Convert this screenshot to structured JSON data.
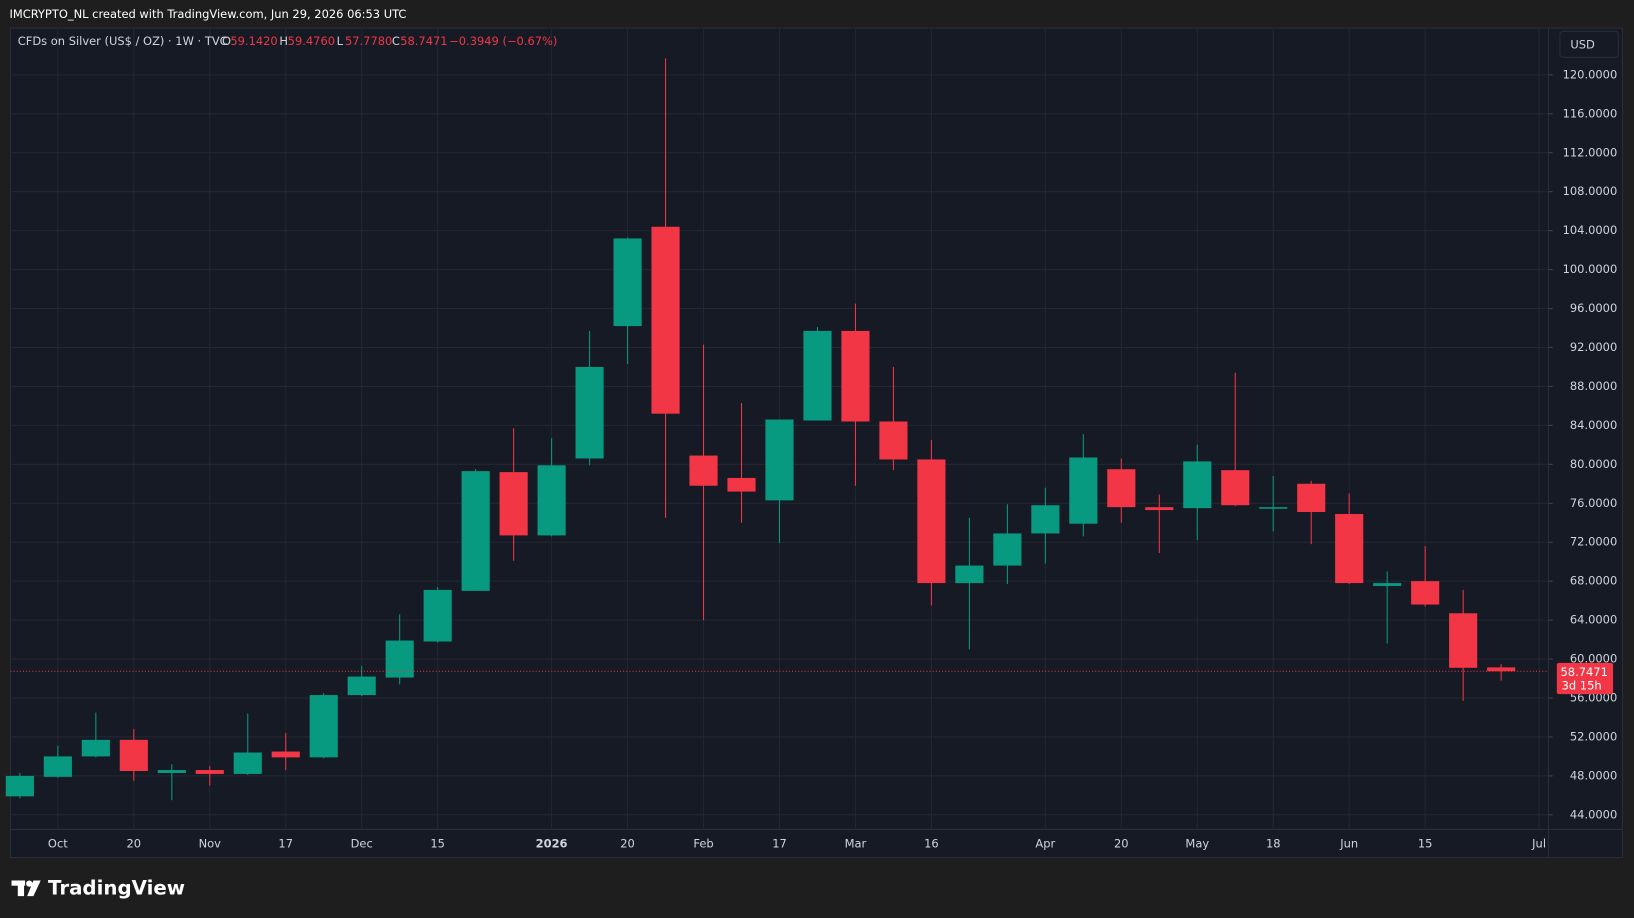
{
  "header": {
    "title": "IMCRYPTO_NL created with TradingView.com, Jun 29, 2026 06:53 UTC"
  },
  "footer": {
    "logo": "TradingView"
  },
  "chart_data": {
    "type": "candlestick",
    "title": "CFDs on Silver (US$ / OZ) · 1W · TVC",
    "legend_values": [
      {
        "label": "O",
        "text": "59.1420"
      },
      {
        "label": "H",
        "text": "59.4760"
      },
      {
        "label": "L",
        "text": "57.7780"
      },
      {
        "label": "C",
        "text": "58.7471"
      }
    ],
    "change_label": "−0.3949 (−0.67%)",
    "currency": "USD",
    "last_price": 58.7471,
    "last_price_label": "58.7471",
    "countdown": "3d 15h",
    "up_color": "#089981",
    "down_color": "#f23645",
    "grid": true,
    "categories": [
      null,
      "Oct",
      null,
      "20",
      null,
      "Nov",
      null,
      "17",
      null,
      "Dec",
      null,
      "15",
      null,
      null,
      "2026",
      null,
      "20",
      null,
      "Feb",
      null,
      "17",
      null,
      "Mar",
      null,
      "16",
      null,
      null,
      "Apr",
      null,
      "20",
      null,
      "May",
      null,
      "18",
      null,
      "Jun",
      null,
      "15",
      null,
      null,
      "Jul"
    ],
    "open": [
      45.9,
      47.9,
      50.0,
      51.7,
      48.3,
      48.6,
      48.2,
      50.5,
      49.9,
      56.3,
      58.1,
      61.8,
      67.0,
      79.2,
      72.7,
      80.6,
      94.2,
      104.4,
      80.9,
      78.6,
      76.3,
      84.5,
      93.7,
      84.4,
      80.5,
      67.8,
      69.6,
      72.9,
      73.9,
      79.5,
      75.6,
      75.5,
      79.4,
      75.5,
      78.0,
      74.9,
      67.5,
      68.0,
      64.7,
      59.142,
      null
    ],
    "high": [
      48.3,
      51.1,
      54.5,
      52.8,
      49.2,
      49.0,
      54.4,
      52.4,
      56.5,
      59.3,
      64.6,
      67.4,
      79.5,
      83.7,
      82.7,
      93.7,
      103.3,
      121.7,
      92.3,
      86.3,
      84.6,
      94.1,
      96.5,
      90.0,
      82.5,
      74.5,
      75.9,
      77.6,
      83.1,
      80.6,
      76.9,
      82.0,
      89.4,
      78.8,
      78.3,
      77.0,
      69.0,
      71.6,
      67.1,
      59.476,
      null
    ],
    "low": [
      45.7,
      47.8,
      49.9,
      47.5,
      45.5,
      47.0,
      48.1,
      48.6,
      49.8,
      56.2,
      57.4,
      61.7,
      67.0,
      70.1,
      72.6,
      79.9,
      90.3,
      74.5,
      64.0,
      74.0,
      71.9,
      84.5,
      77.8,
      79.4,
      65.5,
      61.0,
      67.7,
      69.8,
      72.6,
      74.0,
      70.9,
      72.2,
      75.7,
      73.1,
      71.8,
      67.7,
      61.6,
      65.4,
      55.7,
      57.778,
      null
    ],
    "close": [
      48.0,
      50.0,
      51.7,
      48.5,
      48.6,
      48.2,
      50.4,
      49.9,
      56.3,
      58.2,
      61.9,
      67.1,
      79.3,
      72.7,
      79.9,
      90.0,
      103.2,
      85.2,
      77.8,
      77.2,
      84.6,
      93.7,
      84.4,
      80.5,
      67.8,
      69.6,
      72.9,
      75.8,
      80.7,
      75.6,
      75.3,
      80.3,
      75.8,
      75.6,
      75.1,
      67.8,
      67.8,
      65.6,
      59.1,
      58.7471,
      null
    ],
    "ylim": [
      42.5,
      124.8
    ],
    "yticks": [
      {
        "value": 44,
        "label": "44.0000"
      },
      {
        "value": 48,
        "label": "48.0000"
      },
      {
        "value": 52,
        "label": "52.0000"
      },
      {
        "value": 56,
        "label": "56.0000"
      },
      {
        "value": 60,
        "label": "60.0000"
      },
      {
        "value": 64,
        "label": "64.0000"
      },
      {
        "value": 68,
        "label": "68.0000"
      },
      {
        "value": 72,
        "label": "72.0000"
      },
      {
        "value": 76,
        "label": "76.0000"
      },
      {
        "value": 80,
        "label": "80.0000"
      },
      {
        "value": 84,
        "label": "84.0000"
      },
      {
        "value": 88,
        "label": "88.0000"
      },
      {
        "value": 92,
        "label": "92.0000"
      },
      {
        "value": 96,
        "label": "96.0000"
      },
      {
        "value": 100,
        "label": "100.0000"
      },
      {
        "value": 104,
        "label": "104.0000"
      },
      {
        "value": 108,
        "label": "108.0000"
      },
      {
        "value": 112,
        "label": "112.0000"
      },
      {
        "value": 116,
        "label": "116.0000"
      },
      {
        "value": 120,
        "label": "120.0000"
      }
    ]
  }
}
